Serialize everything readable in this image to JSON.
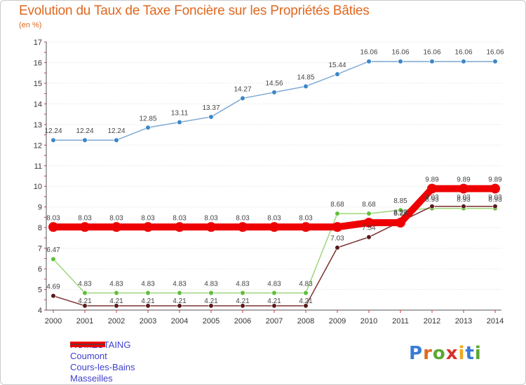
{
  "header": {
    "title": "Evolution du Taux de Taxe Foncière sur les Propriétés Bâties",
    "subtitle": "(en %)"
  },
  "brand": {
    "letters": [
      "P",
      "r",
      "o",
      "x",
      "i",
      "t",
      "i"
    ],
    "colors": [
      "#3a7bd5",
      "#e0671f",
      "#5aa832",
      "#d9302a",
      "#f0a81e",
      "#3a7bd5",
      "#5aa832"
    ]
  },
  "chart_data": {
    "type": "line",
    "title": "Evolution du Taux de Taxe Foncière sur les Propriétés Bâties",
    "ylabel": "(en %)",
    "xlabel": "",
    "categories": [
      "2000",
      "2001",
      "2002",
      "2003",
      "2004",
      "2005",
      "2006",
      "2007",
      "2008",
      "2009",
      "2010",
      "2011",
      "2012",
      "2013",
      "2014"
    ],
    "ylim": [
      4,
      17
    ],
    "yticks": [
      "4",
      "5",
      "6",
      "7",
      "8",
      "9",
      "10",
      "11",
      "12",
      "13",
      "14",
      "15",
      "16",
      "17"
    ],
    "legend_position": "bottom-left",
    "series": [
      {
        "name": "ROMESTAING",
        "color": "#ee0000",
        "values": [
          8.03,
          8.03,
          8.03,
          8.03,
          8.03,
          8.03,
          8.03,
          8.03,
          8.03,
          8.03,
          8.24,
          8.24,
          9.89,
          9.89,
          9.89
        ],
        "labels": [
          "8.03",
          "8.03",
          "8.03",
          "8.03",
          "8.03",
          "8.03",
          "8.03",
          "8.03",
          "8.03",
          "",
          "",
          "8.24",
          "9.89",
          "9.89",
          "9.89"
        ]
      },
      {
        "name": "Coumont",
        "color": "#7fa9d6",
        "values": [
          12.24,
          12.24,
          12.24,
          12.85,
          13.11,
          13.37,
          14.27,
          14.56,
          14.85,
          15.44,
          16.06,
          16.06,
          16.06,
          16.06,
          16.06
        ],
        "labels": [
          "12.24",
          "12.24",
          "12.24",
          "12.85",
          "13.11",
          "13.37",
          "14.27",
          "14.56",
          "14.85",
          "15.44",
          "16.06",
          "16.06",
          "16.06",
          "16.06",
          "16.06"
        ]
      },
      {
        "name": "Cours-les-Bains",
        "color": "#9ed67a",
        "values": [
          6.47,
          4.83,
          4.83,
          4.83,
          4.83,
          4.83,
          4.83,
          4.83,
          4.83,
          8.68,
          8.68,
          8.85,
          8.93,
          8.93,
          8.93
        ],
        "labels": [
          "6.47",
          "4.83",
          "4.83",
          "4.83",
          "4.83",
          "4.83",
          "4.83",
          "4.83",
          "4.83",
          "8.68",
          "8.68",
          "8.85",
          "8.93",
          "8.93",
          "8.93"
        ]
      },
      {
        "name": "Masseilles",
        "color": "#7a3030",
        "values": [
          4.69,
          4.21,
          4.21,
          4.21,
          4.21,
          4.21,
          4.21,
          4.21,
          4.21,
          7.03,
          7.54,
          8.29,
          9.03,
          9.03,
          9.03
        ],
        "labels": [
          "4.69",
          "4.21",
          "4.21",
          "4.21",
          "4.21",
          "4.21",
          "4.21",
          "4.21",
          "4.21",
          "7.03",
          "7.54",
          "8.29",
          "9.03",
          "9.03",
          "9.03"
        ]
      }
    ]
  }
}
